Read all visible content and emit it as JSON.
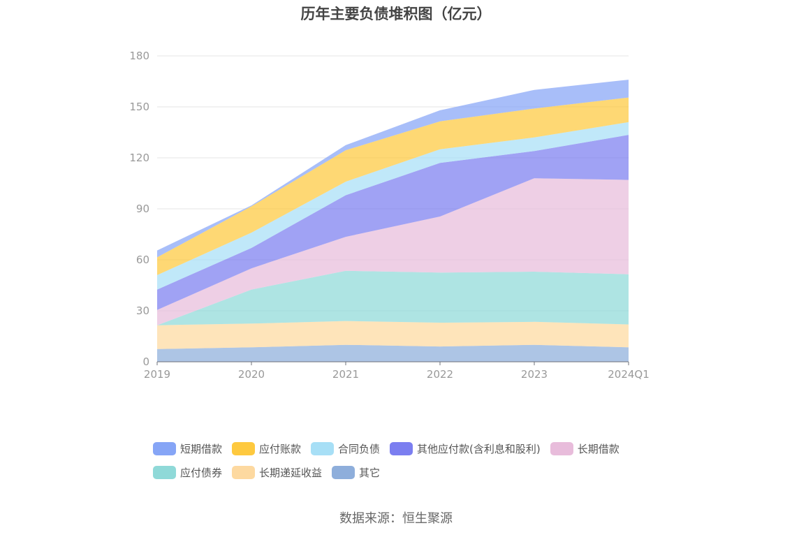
{
  "chart_data": {
    "type": "area",
    "stacked": true,
    "title": "历年主要负债堆积图（亿元）",
    "categories": [
      "2019",
      "2020",
      "2021",
      "2022",
      "2023",
      "2024Q1"
    ],
    "ylim": [
      0,
      180
    ],
    "yticks": [
      0,
      30,
      60,
      90,
      120,
      150,
      180
    ],
    "grid": true,
    "legend_position": "bottom",
    "series": [
      {
        "name": "其它",
        "color": "#8eaedb",
        "values": [
          7.5,
          8.5,
          10.0,
          9.0,
          10.0,
          8.5
        ]
      },
      {
        "name": "长期递延收益",
        "color": "#fdd9a0",
        "values": [
          14.0,
          14.0,
          14.0,
          14.0,
          13.5,
          13.5
        ]
      },
      {
        "name": "应付债券",
        "color": "#8fd9d8",
        "values": [
          0.0,
          20.0,
          29.5,
          29.5,
          29.5,
          29.5
        ]
      },
      {
        "name": "长期借款",
        "color": "#e8bcdb",
        "values": [
          9.0,
          12.5,
          20.0,
          33.0,
          55.0,
          55.5
        ]
      },
      {
        "name": "其他应付款(含利息和股利)",
        "color": "#7b7ef0",
        "values": [
          12.0,
          12.0,
          24.5,
          31.5,
          16.0,
          26.5
        ]
      },
      {
        "name": "合同负债",
        "color": "#a7dff6",
        "values": [
          8.5,
          9.0,
          8.0,
          8.0,
          8.0,
          7.5
        ]
      },
      {
        "name": "应付账款",
        "color": "#fec93f",
        "values": [
          10.5,
          15.5,
          18.5,
          16.5,
          17.0,
          14.5
        ]
      },
      {
        "name": "短期借款",
        "color": "#86a5f6",
        "values": [
          4.0,
          0.5,
          3.0,
          6.5,
          11.0,
          10.5
        ]
      }
    ]
  },
  "legend": {
    "items": [
      {
        "label": "短期借款",
        "color": "#86a5f6"
      },
      {
        "label": "应付账款",
        "color": "#fec93f"
      },
      {
        "label": "合同负债",
        "color": "#a7dff6"
      },
      {
        "label": "其他应付款(含利息和股利)",
        "color": "#7b7ef0"
      },
      {
        "label": "长期借款",
        "color": "#e8bcdb"
      },
      {
        "label": "应付债券",
        "color": "#8fd9d8"
      },
      {
        "label": "长期递延收益",
        "color": "#fdd9a0"
      },
      {
        "label": "其它",
        "color": "#8eaedb"
      }
    ]
  },
  "source_text": "数据来源：恒生聚源"
}
